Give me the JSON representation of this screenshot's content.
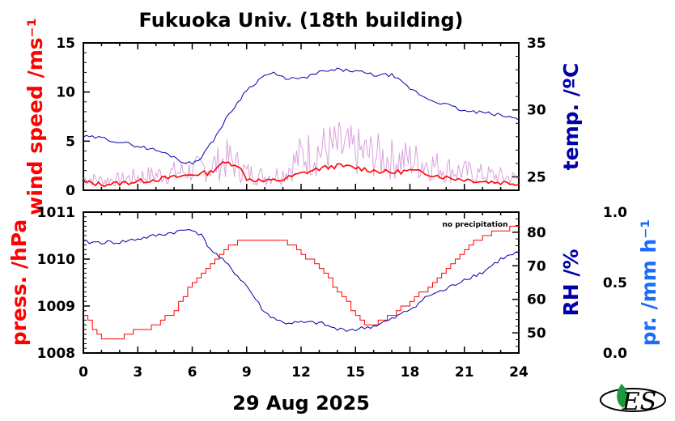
{
  "title": "Fukuoka Univ. (18th building)",
  "xlabel": "29 Aug 2025",
  "colors": {
    "wind": "#ff0000",
    "wind_gust": "#d9a3dd",
    "temp": "#0000aa",
    "pressure": "#ff0000",
    "rh": "#0000aa",
    "precip": "#1a6cff",
    "axis": "#000000"
  },
  "logo": {
    "icon": "university-leaf-logo-icon",
    "text": "ES"
  },
  "chart_data": [
    {
      "type": "line",
      "panel": "top",
      "x_ticks": [
        "0",
        "3",
        "6",
        "9",
        "12",
        "15",
        "18",
        "21",
        "24"
      ],
      "xlim": [
        0,
        24
      ],
      "left_axis": {
        "label": "wind speed /ms⁻¹",
        "ylim": [
          0,
          15
        ],
        "ticks": [
          "0",
          "5",
          "10",
          "15"
        ]
      },
      "right_axis": {
        "label": "temp. /ºC",
        "ylim": [
          24,
          35
        ],
        "ticks": [
          "25",
          "30",
          "35"
        ]
      },
      "series": [
        {
          "axis": "left",
          "x": [
            0,
            1,
            2,
            3,
            4,
            5,
            6,
            7,
            7.5,
            8,
            8.5,
            9,
            10,
            11,
            12,
            13,
            14,
            15,
            16,
            17,
            18,
            19,
            20,
            21,
            22,
            23,
            24
          ],
          "values": [
            0.8,
            0.6,
            0.7,
            0.9,
            1.1,
            1.3,
            1.6,
            1.8,
            2.6,
            2.8,
            2.6,
            1.2,
            0.9,
            1.1,
            1.7,
            2.2,
            2.5,
            2.3,
            2.0,
            1.8,
            2.0,
            1.7,
            1.3,
            1.1,
            0.9,
            0.8,
            0.7
          ]
        },
        {
          "axis": "left",
          "x": [
            0,
            1,
            2,
            3,
            4,
            5,
            6,
            7,
            8,
            9,
            10,
            11,
            12,
            13,
            14,
            15,
            16,
            17,
            18,
            19,
            20,
            21,
            22,
            23,
            24
          ],
          "values": [
            1.6,
            1.3,
            1.4,
            1.8,
            2.0,
            2.3,
            2.6,
            3.1,
            4.1,
            2.3,
            1.8,
            2.2,
            4.5,
            5.2,
            5.5,
            5.0,
            4.6,
            4.1,
            4.0,
            3.5,
            2.8,
            2.4,
            2.1,
            1.8,
            1.5
          ]
        },
        {
          "axis": "right",
          "x": [
            0,
            1,
            2,
            3,
            4,
            5,
            5.5,
            6,
            6.5,
            7,
            8,
            9,
            10,
            10.5,
            11,
            12,
            13,
            14,
            15,
            16,
            17,
            18,
            19,
            20,
            21,
            22,
            23,
            24
          ],
          "values": [
            28.0,
            27.9,
            27.6,
            27.3,
            27.0,
            26.5,
            26.1,
            26.0,
            26.5,
            27.4,
            29.6,
            31.5,
            32.6,
            32.7,
            32.4,
            32.3,
            32.8,
            33.0,
            32.9,
            32.6,
            32.6,
            31.6,
            30.8,
            30.4,
            29.9,
            29.8,
            29.6,
            29.3
          ]
        }
      ]
    },
    {
      "type": "line",
      "panel": "bottom",
      "x_ticks": [
        "0",
        "3",
        "6",
        "9",
        "12",
        "15",
        "18",
        "21",
        "24"
      ],
      "xlim": [
        0,
        24
      ],
      "left_axis": {
        "label": "press. /hPa",
        "ylim": [
          1008,
          1011
        ],
        "ticks": [
          "1008",
          "1009",
          "1010",
          "1011"
        ]
      },
      "right_axis": {
        "label": "RH /%",
        "ylim": [
          44,
          86
        ],
        "ticks": [
          "50",
          "60",
          "70",
          "80"
        ]
      },
      "far_right_axis": {
        "label": "pr. /mm h⁻¹",
        "ylim": [
          0,
          1
        ],
        "ticks": [
          "0.0",
          "0.5",
          "1.0"
        ]
      },
      "annotation": "no precipitation",
      "series": [
        {
          "axis": "left",
          "x": [
            0,
            0.5,
            1,
            2,
            2.5,
            3,
            3.5,
            4,
            5,
            6,
            7,
            7.5,
            8,
            9,
            10,
            11,
            12,
            13,
            14,
            15,
            15.5,
            16,
            17,
            18,
            19,
            20,
            21,
            22,
            23,
            24
          ],
          "values": [
            1008.8,
            1008.5,
            1008.3,
            1008.3,
            1008.4,
            1008.5,
            1008.5,
            1008.6,
            1008.9,
            1009.5,
            1009.9,
            1010.1,
            1010.3,
            1010.4,
            1010.4,
            1010.4,
            1010.1,
            1009.8,
            1009.3,
            1008.8,
            1008.6,
            1008.6,
            1008.8,
            1009.1,
            1009.4,
            1009.8,
            1010.2,
            1010.5,
            1010.6,
            1010.7
          ]
        },
        {
          "axis": "right",
          "x": [
            0,
            1,
            2,
            3,
            4,
            5,
            6,
            6.5,
            7,
            8,
            9,
            10,
            11,
            12,
            13,
            14,
            15,
            16,
            17,
            18,
            19,
            20,
            21,
            22,
            23,
            24
          ],
          "values": [
            77,
            77,
            77,
            78,
            79,
            80,
            81,
            79,
            75,
            70,
            64,
            56,
            53,
            53,
            53,
            51,
            51,
            52,
            54,
            57,
            61,
            63,
            66,
            68,
            72,
            74
          ]
        }
      ]
    }
  ]
}
